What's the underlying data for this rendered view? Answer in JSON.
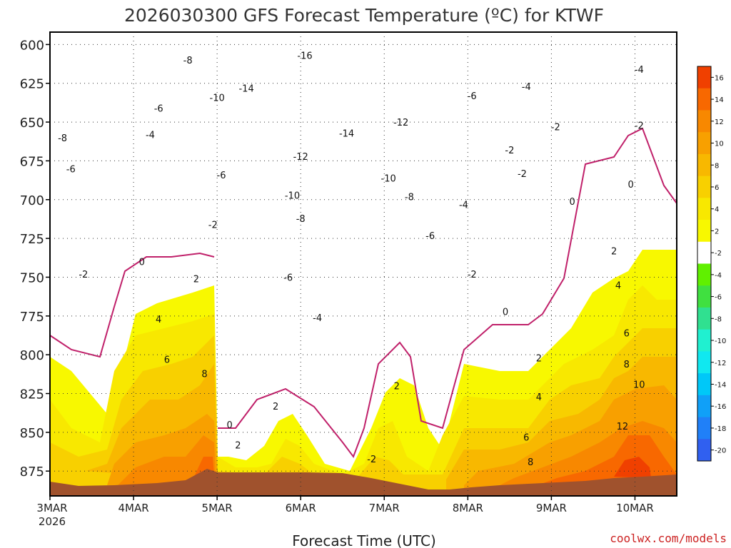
{
  "chart_data": {
    "type": "heatmap",
    "title": "2026030300 GFS Forecast Temperature (ºC) for KTWF",
    "xlabel": "Forecast Time (UTC)",
    "ylabel": "",
    "credit": "coolwx.com/models",
    "x_ticks": [
      "3MAR",
      "4MAR",
      "5MAR",
      "6MAR",
      "7MAR",
      "8MAR",
      "9MAR",
      "10MAR"
    ],
    "x_year": "2026",
    "xlim": [
      0,
      7.5
    ],
    "y_ticks": [
      600,
      625,
      650,
      675,
      700,
      725,
      750,
      775,
      800,
      825,
      850,
      875
    ],
    "ylim": [
      891,
      592
    ],
    "colorbar": {
      "levels": [
        16,
        14,
        12,
        10,
        8,
        6,
        4,
        2,
        -2,
        -4,
        -6,
        -8,
        -10,
        -12,
        -14,
        -16,
        -18,
        -20
      ],
      "colors": [
        "#f04000",
        "#f86800",
        "#f88800",
        "#f8a000",
        "#f8b800",
        "#f8d000",
        "#f8e800",
        "#f8f800",
        "#ffffff",
        "#60f000",
        "#40e040",
        "#30e090",
        "#20f0d0",
        "#10e8f0",
        "#00c8f8",
        "#10a0f8",
        "#2080f8",
        "#3060f0"
      ]
    },
    "contour_labels": [
      {
        "v": "-16",
        "x": 3.05,
        "y": 607
      },
      {
        "v": "-14",
        "x": 2.35,
        "y": 628
      },
      {
        "v": "-14",
        "x": 3.55,
        "y": 657
      },
      {
        "v": "-12",
        "x": 4.2,
        "y": 650
      },
      {
        "v": "-12",
        "x": 3.0,
        "y": 672
      },
      {
        "v": "-10",
        "x": 2.0,
        "y": 634
      },
      {
        "v": "-10",
        "x": 2.9,
        "y": 697
      },
      {
        "v": "-10",
        "x": 4.05,
        "y": 686
      },
      {
        "v": "-8",
        "x": 1.65,
        "y": 610
      },
      {
        "v": "-8",
        "x": 0.15,
        "y": 660
      },
      {
        "v": "-8",
        "x": 3.0,
        "y": 712
      },
      {
        "v": "-8",
        "x": 4.3,
        "y": 698
      },
      {
        "v": "-6",
        "x": 1.3,
        "y": 641
      },
      {
        "v": "-6",
        "x": 0.25,
        "y": 680
      },
      {
        "v": "-6",
        "x": 2.05,
        "y": 684
      },
      {
        "v": "-6",
        "x": 2.85,
        "y": 750
      },
      {
        "v": "-6",
        "x": 4.55,
        "y": 723
      },
      {
        "v": "-6",
        "x": 5.05,
        "y": 633
      },
      {
        "v": "-4",
        "x": 1.2,
        "y": 658
      },
      {
        "v": "-4",
        "x": 3.2,
        "y": 776
      },
      {
        "v": "-4",
        "x": 4.95,
        "y": 703
      },
      {
        "v": "-4",
        "x": 5.7,
        "y": 627
      },
      {
        "v": "-4",
        "x": 7.05,
        "y": 616
      },
      {
        "v": "-2",
        "x": 0.4,
        "y": 748
      },
      {
        "v": "-2",
        "x": 1.95,
        "y": 716
      },
      {
        "v": "-2",
        "x": 5.05,
        "y": 748
      },
      {
        "v": "-2",
        "x": 5.5,
        "y": 668
      },
      {
        "v": "-2",
        "x": 5.65,
        "y": 683
      },
      {
        "v": "-2",
        "x": 6.05,
        "y": 653
      },
      {
        "v": "-2",
        "x": 7.05,
        "y": 652
      },
      {
        "v": "-2",
        "x": 3.85,
        "y": 867
      },
      {
        "v": "0",
        "x": 1.1,
        "y": 740
      },
      {
        "v": "0",
        "x": 5.45,
        "y": 772
      },
      {
        "v": "0",
        "x": 6.25,
        "y": 701
      },
      {
        "v": "0",
        "x": 6.95,
        "y": 690
      },
      {
        "v": "2",
        "x": 1.75,
        "y": 751
      },
      {
        "v": "2",
        "x": 2.7,
        "y": 833
      },
      {
        "v": "2",
        "x": 2.25,
        "y": 858
      },
      {
        "v": "2",
        "x": 4.15,
        "y": 820
      },
      {
        "v": "2",
        "x": 5.85,
        "y": 802
      },
      {
        "v": "2",
        "x": 6.75,
        "y": 733
      },
      {
        "v": "4",
        "x": 1.3,
        "y": 777
      },
      {
        "v": "4",
        "x": 5.85,
        "y": 827
      },
      {
        "v": "4",
        "x": 6.8,
        "y": 755
      },
      {
        "v": "6",
        "x": 1.4,
        "y": 803
      },
      {
        "v": "6",
        "x": 5.7,
        "y": 853
      },
      {
        "v": "6",
        "x": 6.9,
        "y": 786
      },
      {
        "v": "8",
        "x": 1.85,
        "y": 812
      },
      {
        "v": "8",
        "x": 5.75,
        "y": 869
      },
      {
        "v": "8",
        "x": 6.9,
        "y": 806
      },
      {
        "v": "10",
        "x": 7.05,
        "y": 819
      },
      {
        "v": "12",
        "x": 6.85,
        "y": 846
      },
      {
        "v": "0",
        "x": 2.15,
        "y": 845
      }
    ]
  }
}
